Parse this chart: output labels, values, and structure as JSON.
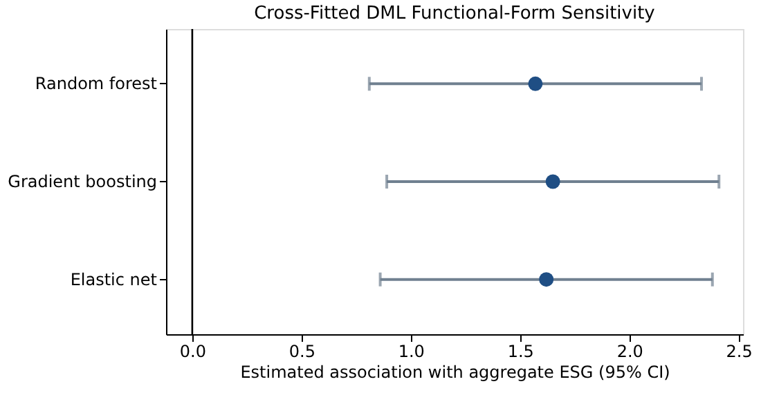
{
  "chart_data": {
    "type": "scatter",
    "orientation": "horizontal",
    "title": "Cross-Fitted DML Functional-Form Sensitivity",
    "xlabel": "Estimated association with aggregate ESG (95% CI)",
    "categories": [
      "Random forest",
      "Gradient boosting",
      "Elastic net"
    ],
    "series": [
      {
        "color": "#1f4e84",
        "values": [
          1.57,
          1.65,
          1.62
        ],
        "errors": [
          [
            0.81,
            2.33
          ],
          [
            0.89,
            2.41
          ],
          [
            0.86,
            2.38
          ]
        ]
      }
    ],
    "xlim": [
      -0.12,
      2.52
    ],
    "xticks": [
      {
        "value": 0,
        "label": "0.0"
      },
      0.5,
      {
        "value": 1,
        "label": "1.0"
      },
      1.5,
      {
        "value": 2,
        "label": "2.0"
      },
      2.5
    ],
    "ref_lines": [
      {
        "axis": "x",
        "value": 0,
        "color": "#000000"
      }
    ],
    "grid": false,
    "marker": "circle"
  }
}
